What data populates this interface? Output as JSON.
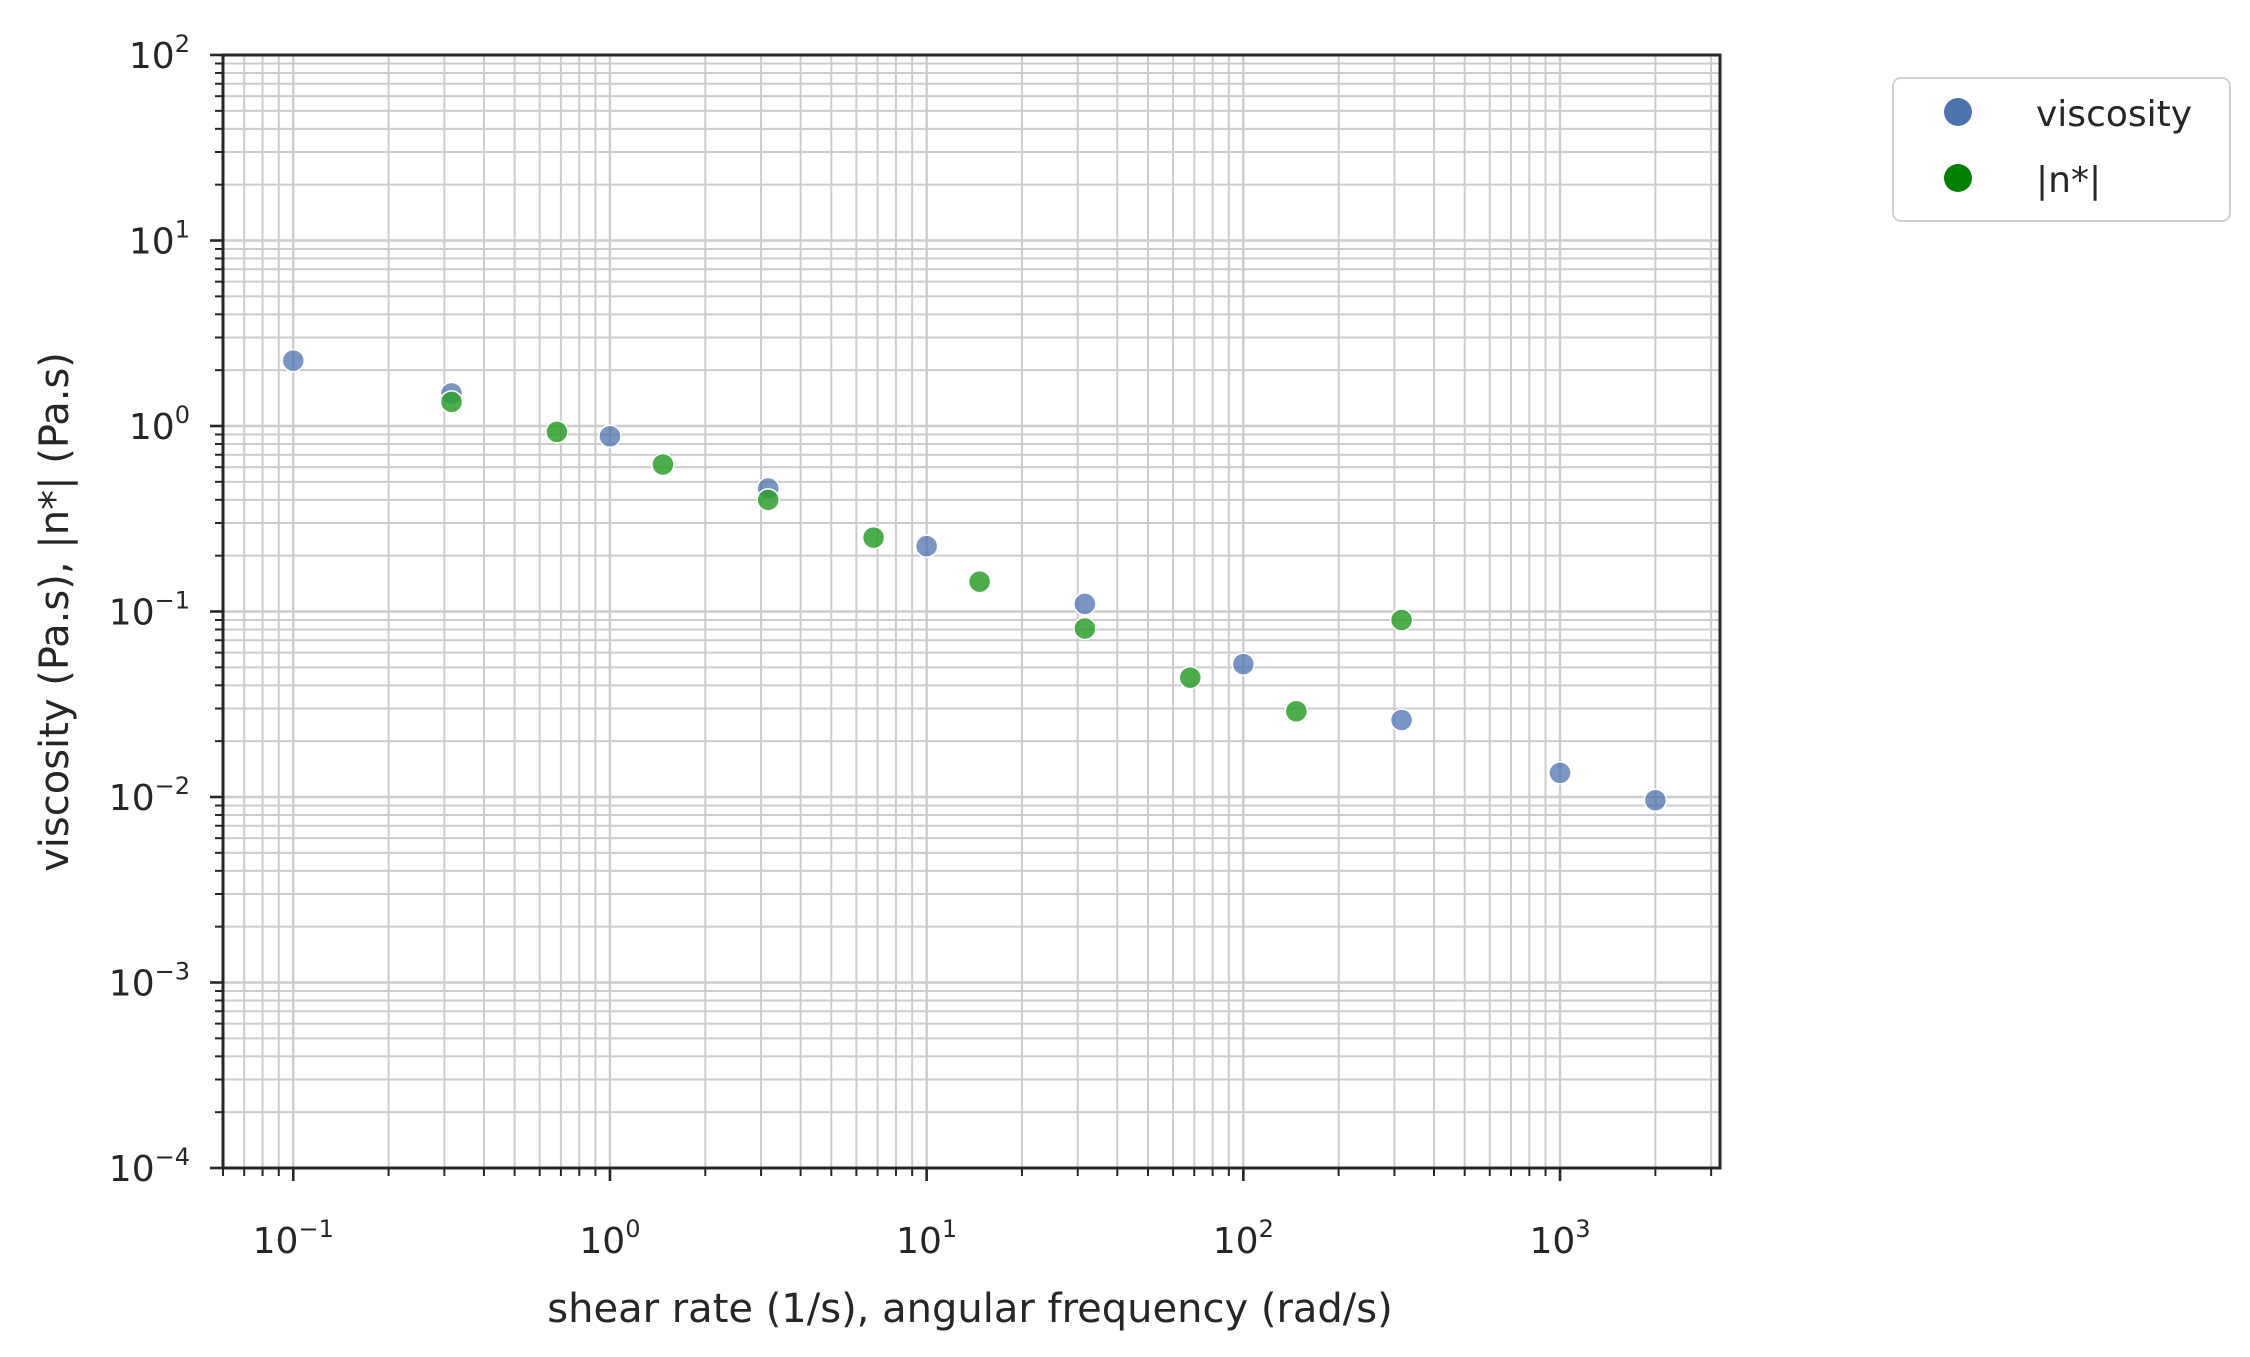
{
  "chart_data": {
    "type": "scatter",
    "title": "",
    "xlabel": "shear rate (1/s), angular frequency (rad/s)",
    "ylabel": "viscosity (Pa.s), |n*| (Pa.s)",
    "xscale": "log",
    "yscale": "log",
    "xlim": [
      0.06,
      3200
    ],
    "ylim": [
      0.0001,
      100
    ],
    "x_major_ticks": [
      0.1,
      1,
      10,
      100,
      1000
    ],
    "x_tick_labels": [
      {
        "base": "10",
        "exp": "−1"
      },
      {
        "base": "10",
        "exp": "0"
      },
      {
        "base": "10",
        "exp": "1"
      },
      {
        "base": "10",
        "exp": "2"
      },
      {
        "base": "10",
        "exp": "3"
      }
    ],
    "y_major_ticks": [
      0.0001,
      0.001,
      0.01,
      0.1,
      1,
      10,
      100
    ],
    "y_tick_labels": [
      {
        "base": "10",
        "exp": "−4"
      },
      {
        "base": "10",
        "exp": "−3"
      },
      {
        "base": "10",
        "exp": "−2"
      },
      {
        "base": "10",
        "exp": "−1"
      },
      {
        "base": "10",
        "exp": "0"
      },
      {
        "base": "10",
        "exp": "1"
      },
      {
        "base": "10",
        "exp": "2"
      }
    ],
    "grid": true,
    "legend_position": "outside-top-right",
    "series": [
      {
        "name": "viscosity",
        "color": "#4c72b0",
        "legend_color": "#4c72b0",
        "x": [
          0.1,
          0.316,
          1.0,
          3.16,
          10.0,
          31.6,
          100.0,
          316.0,
          1000.0,
          2000.0
        ],
        "y": [
          2.25,
          1.5,
          0.88,
          0.46,
          0.225,
          0.11,
          0.052,
          0.026,
          0.0135,
          0.0096
        ]
      },
      {
        "name": "|n*|",
        "color": "#2ca02c",
        "legend_color": "#008000",
        "x": [
          0.316,
          0.68,
          1.47,
          3.16,
          6.8,
          14.7,
          31.6,
          68.0,
          147.0,
          316.0
        ],
        "y": [
          1.35,
          0.93,
          0.62,
          0.4,
          0.25,
          0.145,
          0.081,
          0.044,
          0.029,
          0.09
        ]
      }
    ]
  }
}
